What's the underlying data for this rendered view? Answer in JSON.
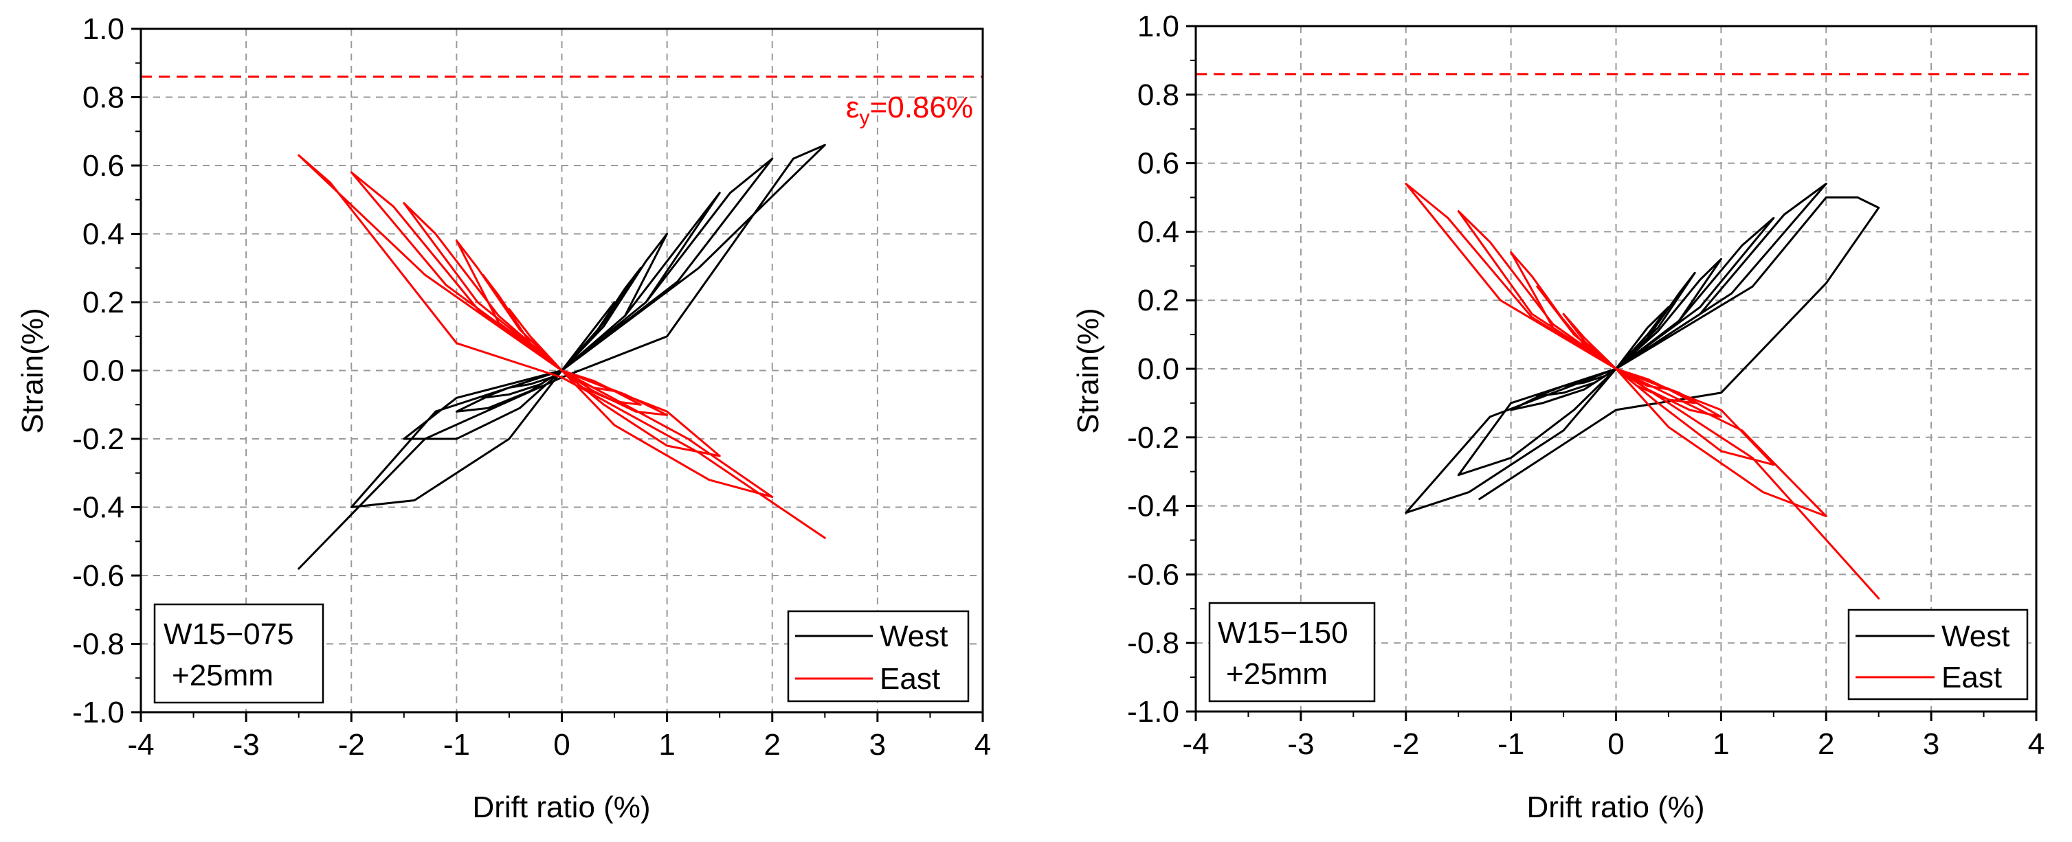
{
  "chart_data": [
    {
      "type": "line",
      "specimen_label": [
        "W15−075",
        "+25mm"
      ],
      "xlabel": "Drift ratio (%)",
      "ylabel": "Strain(%)",
      "xlim": [
        -4,
        4
      ],
      "ylim": [
        -1.0,
        1.0
      ],
      "xticks": [
        -4,
        -3,
        -2,
        -1,
        0,
        1,
        2,
        3,
        4
      ],
      "xtick_labels": [
        "-4",
        "-3",
        "-2",
        "-1",
        "0",
        "1",
        "2",
        "3",
        "4"
      ],
      "yticks": [
        -1.0,
        -0.8,
        -0.6,
        -0.4,
        -0.2,
        0.0,
        0.2,
        0.4,
        0.6,
        0.8,
        1.0
      ],
      "ytick_labels": [
        "-1.0",
        "-0.8",
        "-0.6",
        "-0.4",
        "-0.2",
        "0.0",
        "0.2",
        "0.4",
        "0.6",
        "0.8",
        "1.0"
      ],
      "grid": true,
      "legend_position": "bottom-right",
      "reference_line": {
        "y": 0.86,
        "color": "#ff0000",
        "style": "dashed"
      },
      "annotation": {
        "prefix": "ε",
        "subscript": "y",
        "suffix": "=0.86%",
        "color": "#ff0000"
      },
      "series": [
        {
          "name": "West",
          "color": "#000000",
          "x": [
            0,
            0.3,
            0.5,
            0.3,
            0.1,
            0,
            -0.3,
            -0.5,
            -0.3,
            -0.1,
            0,
            0.4,
            0.75,
            0.6,
            0.3,
            0,
            -0.5,
            -0.75,
            -0.5,
            -0.2,
            0,
            0.6,
            1.0,
            0.8,
            0.4,
            0,
            -0.6,
            -1.0,
            -0.7,
            -0.3,
            0,
            0.8,
            1.5,
            1.2,
            0.6,
            0,
            -1.0,
            -1.5,
            -1.0,
            -0.4,
            0,
            1.1,
            2.0,
            1.6,
            0.8,
            0,
            -1.2,
            -2.0,
            -1.4,
            -0.5,
            0,
            1.3,
            2.5,
            2.2,
            1.0,
            0,
            -1.3,
            -2.5
          ],
          "y": [
            0,
            0.12,
            0.2,
            0.12,
            0.04,
            0,
            -0.03,
            -0.05,
            -0.04,
            -0.02,
            0,
            0.14,
            0.3,
            0.24,
            0.1,
            0,
            -0.05,
            -0.08,
            -0.07,
            -0.04,
            0,
            0.16,
            0.4,
            0.32,
            0.13,
            0,
            -0.06,
            -0.12,
            -0.11,
            -0.06,
            0,
            0.2,
            0.52,
            0.4,
            0.16,
            0,
            -0.08,
            -0.2,
            -0.2,
            -0.11,
            0,
            0.26,
            0.62,
            0.52,
            0.2,
            0,
            -0.12,
            -0.4,
            -0.38,
            -0.2,
            0,
            0.3,
            0.66,
            0.62,
            0.1,
            -0.02,
            -0.2,
            -0.58
          ]
        },
        {
          "name": "East",
          "color": "#ff0000",
          "x": [
            0,
            -0.3,
            -0.5,
            -0.3,
            -0.1,
            0,
            0.3,
            0.5,
            0.3,
            0.1,
            0,
            -0.4,
            -0.75,
            -0.6,
            -0.3,
            0,
            0.5,
            0.75,
            0.5,
            0.2,
            0,
            -0.6,
            -1.0,
            -0.8,
            -0.4,
            0,
            0.6,
            1.0,
            0.7,
            0.3,
            0,
            -0.8,
            -1.5,
            -1.2,
            -0.6,
            0,
            1.0,
            1.5,
            1.0,
            0.4,
            0,
            -1.1,
            -2.0,
            -1.6,
            -0.8,
            0,
            1.2,
            2.0,
            1.4,
            0.5,
            0,
            -1.3,
            -2.5,
            -2.2,
            -1.0,
            0,
            1.3,
            2.5
          ],
          "y": [
            0,
            0.1,
            0.18,
            0.1,
            0.03,
            0,
            -0.03,
            -0.06,
            -0.05,
            -0.02,
            0,
            0.12,
            0.28,
            0.22,
            0.08,
            0,
            -0.06,
            -0.1,
            -0.09,
            -0.05,
            0,
            0.14,
            0.38,
            0.3,
            0.12,
            0,
            -0.07,
            -0.13,
            -0.12,
            -0.06,
            0,
            0.2,
            0.49,
            0.4,
            0.16,
            0,
            -0.12,
            -0.25,
            -0.22,
            -0.1,
            0,
            0.25,
            0.58,
            0.48,
            0.18,
            0,
            -0.2,
            -0.37,
            -0.32,
            -0.16,
            0,
            0.28,
            0.63,
            0.55,
            0.08,
            -0.02,
            -0.24,
            -0.49
          ]
        }
      ]
    },
    {
      "type": "line",
      "specimen_label": [
        "W15−150",
        "+25mm"
      ],
      "xlabel": "Drift ratio (%)",
      "ylabel": "Strain(%)",
      "xlim": [
        -4,
        4
      ],
      "ylim": [
        -1.0,
        1.0
      ],
      "xticks": [
        -4,
        -3,
        -2,
        -1,
        0,
        1,
        2,
        3,
        4
      ],
      "xtick_labels": [
        "-4",
        "-3",
        "-2",
        "-1",
        "0",
        "1",
        "2",
        "3",
        "4"
      ],
      "yticks": [
        -1.0,
        -0.8,
        -0.6,
        -0.4,
        -0.2,
        0.0,
        0.2,
        0.4,
        0.6,
        0.8,
        1.0
      ],
      "ytick_labels": [
        "-1.0",
        "-0.8",
        "-0.6",
        "-0.4",
        "-0.2",
        "0.0",
        "0.2",
        "0.4",
        "0.6",
        "0.8",
        "1.0"
      ],
      "grid": true,
      "legend_position": "bottom-right",
      "reference_line": {
        "y": 0.86,
        "color": "#ff0000",
        "style": "dashed"
      },
      "series": [
        {
          "name": "West",
          "color": "#000000",
          "x": [
            0,
            0.3,
            0.5,
            0.3,
            0.1,
            0,
            -0.3,
            -0.5,
            -0.3,
            -0.1,
            0,
            0.4,
            0.75,
            0.6,
            0.3,
            0,
            -0.5,
            -0.75,
            -0.5,
            -0.2,
            0,
            0.6,
            1.0,
            0.8,
            0.4,
            0,
            -0.6,
            -1.0,
            -0.7,
            -0.3,
            0,
            0.8,
            1.5,
            1.2,
            0.6,
            0,
            -1.0,
            -1.5,
            -1.0,
            -0.4,
            0,
            1.1,
            2.0,
            1.6,
            0.8,
            0,
            -1.2,
            -2.0,
            -1.4,
            -0.5,
            0,
            1.3,
            2.0,
            2.3,
            2.5,
            2.0,
            1.0,
            0,
            -1.3
          ],
          "y": [
            0,
            0.1,
            0.18,
            0.12,
            0.04,
            0,
            -0.03,
            -0.05,
            -0.04,
            -0.02,
            0,
            0.12,
            0.28,
            0.22,
            0.09,
            0,
            -0.05,
            -0.08,
            -0.07,
            -0.04,
            0,
            0.14,
            0.32,
            0.26,
            0.11,
            0,
            -0.06,
            -0.12,
            -0.1,
            -0.06,
            0,
            0.18,
            0.44,
            0.36,
            0.14,
            0,
            -0.1,
            -0.31,
            -0.26,
            -0.12,
            0,
            0.22,
            0.54,
            0.45,
            0.16,
            0,
            -0.14,
            -0.42,
            -0.36,
            -0.18,
            0,
            0.24,
            0.5,
            0.5,
            0.47,
            0.25,
            -0.07,
            -0.12,
            -0.38
          ]
        },
        {
          "name": "East",
          "color": "#ff0000",
          "x": [
            0,
            -0.3,
            -0.5,
            -0.3,
            -0.1,
            0,
            0.3,
            0.5,
            0.3,
            0.1,
            0,
            -0.4,
            -0.75,
            -0.6,
            -0.3,
            0,
            0.5,
            0.75,
            0.5,
            0.2,
            0,
            -0.6,
            -1.0,
            -0.8,
            -0.4,
            0,
            0.6,
            1.0,
            0.7,
            0.3,
            0,
            -0.8,
            -1.5,
            -1.2,
            -0.6,
            0,
            1.0,
            1.5,
            1.0,
            0.4,
            0,
            -1.1,
            -2.0,
            -1.6,
            -0.8,
            0,
            1.2,
            2.0,
            1.4,
            0.5,
            0,
            1.3,
            2.5
          ],
          "y": [
            0,
            0.08,
            0.16,
            0.09,
            0.03,
            0,
            -0.03,
            -0.06,
            -0.05,
            -0.02,
            0,
            0.1,
            0.24,
            0.18,
            0.07,
            0,
            -0.06,
            -0.1,
            -0.09,
            -0.05,
            0,
            0.12,
            0.34,
            0.27,
            0.1,
            0,
            -0.07,
            -0.14,
            -0.12,
            -0.06,
            0,
            0.16,
            0.46,
            0.37,
            0.13,
            0,
            -0.12,
            -0.28,
            -0.24,
            -0.1,
            0,
            0.2,
            0.54,
            0.44,
            0.15,
            0,
            -0.18,
            -0.43,
            -0.36,
            -0.17,
            0,
            -0.26,
            -0.67
          ]
        }
      ]
    }
  ]
}
